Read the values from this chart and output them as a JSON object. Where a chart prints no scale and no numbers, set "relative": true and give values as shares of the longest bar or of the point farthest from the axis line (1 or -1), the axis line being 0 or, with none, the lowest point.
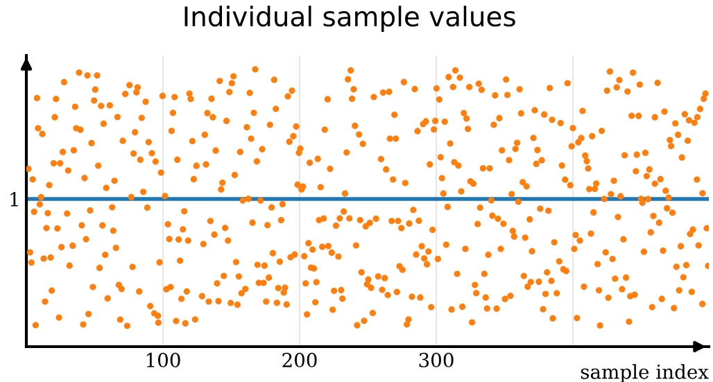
{
  "chart_data": {
    "type": "scatter",
    "title": "Individual sample values",
    "xlabel": "sample index",
    "relative": true,
    "xlim": [
      0,
      499.5
    ],
    "xticks": [
      100,
      200,
      300,
      {
        "value": 400,
        "label": null
      }
    ],
    "grid": "x",
    "marker": "circle",
    "ref_lines": [
      {
        "axis": "y",
        "value": 0.5325,
        "label": "1",
        "color": "#1f77b4"
      }
    ],
    "series": [
      {
        "color": "#ff7f0e",
        "x": [
          38.6,
          44.7,
          51.8,
          27.6,
          7.8,
          21.7,
          50.4,
          75.5,
          81.4,
          80.6,
          72.4,
          99.7,
          108.5,
          119.4,
          120.3,
          35.7,
          49.6,
          54.7,
          61.1,
          87.3,
          20.8,
          66.7,
          84.4,
          107.3,
          8.6,
          11.7,
          36.5,
          39.6,
          56.5,
          79.5,
          106.3,
          47.7,
          70.6,
          89.5,
          121.5,
          26.7,
          34.7,
          78.5,
          91.9,
          20,
          24.7,
          52.6,
          83.4,
          94.6,
          110.5,
          1.5,
          4.7,
          16.8,
          30.6,
          42.6,
          58.5,
          64.5,
          98.6,
          122.5,
          124.5,
          85.6,
          10.8,
          76.8,
          101.5,
          9.8,
          5.7,
          15.7,
          29.8,
          46.7,
          62.8,
          88.5,
          115.6,
          14.7,
          22.7,
          40.6,
          55.7,
          63.6,
          103.6,
          114.6,
          43.7,
          104.6,
          111.5,
          118.4,
          2.7,
          3.7,
          12.7,
          17.8,
          25.7,
          33.9,
          31.6,
          53.6,
          57.7,
          65.6,
          77.7,
          97.5,
          112.5,
          18.6,
          13.7,
          48.7,
          59.5,
          67.7,
          69.7,
          82.6,
          102.5,
          105.6,
          117.4,
          113.5,
          90.7,
          93.6,
          96.3,
          96.6,
          23.9,
          45.5,
          6.8,
          41.6,
          68.7,
          73.8,
          109.6,
          116.4,
          123.5,
          167.5,
          141.5,
          151.6,
          150.4,
          148.6,
          163.5,
          181.4,
          194.4,
          191.4,
          135.5,
          132.5,
          136.5,
          146.5,
          166.5,
          182.6,
          161.4,
          178.3,
          197.5,
          130.6,
          164.5,
          195.4,
          192.5,
          138.6,
          156.5,
          172.6,
          200.5,
          199.5,
          168.7,
          131.5,
          152.5,
          143.5,
          142.5,
          198.5,
          202.4,
          201.4,
          218.4,
          220.5,
          237.4,
          235.4,
          239.6,
          238.4,
          254.3,
          240.5,
          243.5,
          246.3,
          234.4,
          207.4,
          213.3,
          222.3,
          215.4,
          233.2,
          158.4,
          162.6,
          171.4,
          179.5,
          187.5,
          134.7,
          145.5,
          137.6,
          147.6,
          129.6,
          165.5,
          176.5,
          186.5,
          232.3,
          214.2,
          217.6,
          229.4,
          226.6,
          236.4,
          244.3,
          248.4,
          251.4,
          255.9,
          180.4,
          185.5,
          153.5,
          169.2,
          174.3,
          193.4,
          196.4,
          206.5,
          209.5,
          216.6,
          221,
          223.5,
          228.4,
          203.4,
          241.3,
          208.3,
          210.5,
          245.3,
          250.3,
          249.4,
          252.3,
          144.5,
          139.6,
          155.5,
          170.2,
          173.6,
          177.5,
          128.6,
          133.5,
          140.6,
          149.6,
          154.5,
          157.5,
          160.3,
          175.5,
          183.4,
          190.5,
          184.4,
          189.3,
          188.4,
          204.4,
          212.3,
          225.2,
          230.4,
          231.3,
          211.5,
          205.4,
          224.2,
          242.1,
          247.2,
          253.5,
          276.3,
          284.3,
          261.1,
          265.5,
          300.2,
          302.2,
          309.1,
          314,
          317.3,
          312.3,
          324.2,
          331.1,
          333.2,
          343.1,
          351.1,
          352.1,
          361,
          383.1,
          269.4,
          286.3,
          290.4,
          292.4,
          299.3,
          298.3,
          306.2,
          320.2,
          322.2,
          323.2,
          342.1,
          346.2,
          362.1,
          372.1,
          379,
          384.8,
          266.1,
          270.4,
          310.2,
          348.1,
          359.2,
          358,
          371.1,
          374.1,
          259.6,
          263.3,
          268.4,
          277.3,
          295.3,
          303.2,
          313.2,
          316.2,
          334.2,
          339.1,
          353.3,
          373.2,
          377.2,
          304.2,
          305.2,
          318.3,
          325,
          327.2,
          363.3,
          366.1,
          355.2,
          340.3,
          360.1,
          283.2,
          308.3,
          332.1,
          376.1,
          382.1,
          267.4,
          272.1,
          274.5,
          280.2,
          287.3,
          297.3,
          330.3,
          341.1,
          345.2,
          349.2,
          356,
          357,
          365.1,
          368.4,
          289.4,
          285.3,
          294.3,
          291.2,
          293.2,
          301.2,
          307.3,
          321.3,
          338.1,
          347.2,
          370.1,
          273.1,
          275.3,
          257.5,
          262.3,
          260.4,
          264.5,
          271.2,
          282.2,
          288.3,
          296.3,
          279.7,
          278.5,
          315.3,
          335.2,
          328.3,
          329.3,
          336.2,
          311.2,
          319.1,
          337.2,
          344.2,
          326.2,
          350.3,
          354.3,
          364.1,
          369.2,
          366.9,
          375.1,
          381.1,
          384.3,
          380,
          378.2,
          385.3,
          386.4,
          427.1,
          444,
          434,
          432.1,
          425,
          440,
          448.9,
          462,
          396.1,
          407.1,
          443,
          448.1,
          460,
          467,
          475,
          481.9,
          485,
          489,
          491.1,
          493.1,
          495.8,
          497,
          391,
          400,
          406.1,
          404,
          399.1,
          414.1,
          421.1,
          477,
          471,
          471.9,
          484.1,
          479.8,
          437.9,
          446.8,
          453,
          409,
          410.2,
          411.2,
          392,
          394.3,
          398.1,
          412,
          416.1,
          417.1,
          430,
          427.9,
          423,
          434.9,
          446.1,
          456,
          454,
          460,
          464.1,
          467.9,
          470.1,
          449.9,
          455,
          450.9,
          490.8,
          494.9,
          468.9,
          472.9,
          415.1,
          433,
          458.9,
          463.1,
          457,
          487.8,
          485.8,
          498,
          402,
          405.1,
          413.2,
          401,
          437,
          424,
          429,
          452,
          466,
          479,
          492,
          390,
          393,
          395.1,
          418.1,
          475.8,
          483,
          499,
          430.9,
          438.9,
          480.9,
          408.1,
          419.1,
          436,
          426,
          442,
          445.2,
          388.2,
          465.1,
          477.8,
          487,
          494.8,
          458,
          474,
          403,
          419.9,
          441.1
        ],
        "values": [
          0.988,
          0.978,
          0.978,
          0.954,
          0.896,
          0.893,
          0.927,
          0.943,
          0.935,
          0.917,
          0.911,
          0.904,
          0.9,
          0.9125,
          0.893,
          0.865,
          0.8875,
          0.868,
          0.87,
          0.883,
          0.827,
          0.828,
          0.825,
          0.843,
          0.7875,
          0.767,
          0.7875,
          0.782,
          0.804,
          0.773,
          0.778,
          0.734,
          0.742,
          0.7375,
          0.741,
          0.702,
          0.708,
          0.696,
          0.6975,
          0.661,
          0.661,
          0.6525,
          0.674,
          0.6675,
          0.674,
          0.641,
          0.603,
          0.5825,
          0.635,
          0.608,
          0.5725,
          0.598,
          0.6275,
          0.604,
          0.652,
          0.558,
          0.539,
          0.539,
          0.543,
          0.513,
          0.486,
          0.481,
          0.48,
          0.491,
          0.5025,
          0.501,
          0.488,
          0.4275,
          0.426,
          0.4375,
          0.437,
          0.418,
          0.441,
          0.423,
          0.3875,
          0.388,
          0.386,
          0.3825,
          0.34,
          0.303,
          0.3175,
          0.321,
          0.359,
          0.364,
          0.292,
          0.284,
          0.331,
          0.356,
          0.2875,
          0.304,
          0.31,
          0.202,
          0.1625,
          0.215,
          0.174,
          0.2225,
          0.208,
          0.199,
          0.207,
          0.215,
          0.199,
          0.1725,
          0.146,
          0.12,
          0.111,
          0.086,
          0.105,
          0.1175,
          0.0775,
          0.08,
          0.0975,
          0.075,
          0.0925,
          0.084,
          0.098,
          1.0,
          0.958,
          0.975,
          0.95,
          0.918,
          0.915,
          0.962,
          0.923,
          0.9025,
          0.894,
          0.842,
          0.827,
          0.814,
          0.843,
          0.8575,
          0.791,
          0.8,
          0.794,
          0.764,
          0.75,
          0.759,
          0.739,
          0.707,
          0.702,
          0.712,
          0.714,
          0.699,
          0.668,
          0.657,
          0.619,
          0.591,
          0.567,
          0.584,
          0.5775,
          0.567,
          0.7825,
          0.892,
          0.996,
          0.964,
          0.928,
          0.894,
          0.9,
          0.796,
          0.765,
          0.731,
          0.7,
          0.663,
          0.677,
          0.641,
          0.575,
          0.552,
          0.527,
          0.533,
          0.527,
          0.502,
          0.514,
          0.453,
          0.428,
          0.404,
          0.3825,
          0.37,
          0.447,
          0.438,
          0.456,
          0.487,
          0.456,
          0.462,
          0.4625,
          0.436,
          0.4625,
          0.456,
          0.434,
          0.446,
          0.461,
          0.337,
          0.306,
          0.305,
          0.295,
          0.292,
          0.3225,
          0.332,
          0.373,
          0.35,
          0.36,
          0.3625,
          0.339,
          0.325,
          0.326,
          0.365,
          0.285,
          0.282,
          0.268,
          0.242,
          0.225,
          0.212,
          0.255,
          0.228,
          0.253,
          0.23,
          0.23,
          0.249,
          0.182,
          0.1625,
          0.164,
          0.1575,
          0.151,
          0.1925,
          0.208,
          0.1625,
          0.158,
          0.152,
          0.211,
          0.2125,
          0.195,
          0.228,
          0.2325,
          0.201,
          0.204,
          0.173,
          0.16,
          0.116,
          0.133,
          0.077,
          0.093,
          0.121,
          0.954,
          0.929,
          0.916,
          0.919,
          0.931,
          0.891,
          0.972,
          0.996,
          0.97,
          0.936,
          0.936,
          0.948,
          0.926,
          0.906,
          0.963,
          0.9075,
          0.928,
          0.9325,
          0.836,
          0.777,
          0.8025,
          0.812,
          0.814,
          0.783,
          0.811,
          0.842,
          0.8225,
          0.785,
          0.8,
          0.824,
          0.841,
          0.8525,
          0.837,
          0.818,
          0.75,
          0.75,
          0.7325,
          0.708,
          0.735,
          0.713,
          0.7525,
          0.709,
          0.676,
          0.639,
          0.6025,
          0.59,
          0.657,
          0.683,
          0.665,
          0.653,
          0.643,
          0.643,
          0.6725,
          0.659,
          0.672,
          0.6075,
          0.552,
          0.56,
          0.596,
          0.5875,
          0.593,
          0.578,
          0.55,
          0.5275,
          0.5225,
          0.493,
          0.504,
          0.501,
          0.4975,
          0.49,
          0.453,
          0.453,
          0.4275,
          0.444,
          0.454,
          0.421,
          0.442,
          0.472,
          0.461,
          0.443,
          0.417,
          0.397,
          0.393,
          0.459,
          0.362,
          0.332,
          0.343,
          0.318,
          0.297,
          0.316,
          0.3675,
          0.3525,
          0.331,
          0.3525,
          0.344,
          0.29,
          0.277,
          0.253,
          0.247,
          0.205,
          0.186,
          0.197,
          0.18,
          0.177,
          0.1425,
          0.098,
          0.08,
          0.2625,
          0.2625,
          0.2225,
          0.193,
          0.177,
          0.134,
          0.144,
          0.1375,
          0.137,
          0.0875,
          0.172,
          0.183,
          0.255,
          0.233,
          0.216,
          0.234,
          0.268,
          0.237,
          0.19,
          0.135,
          0.102,
          0.376,
          0.992,
          0.988,
          0.961,
          0.935,
          0.923,
          0.92,
          0.945,
          0.951,
          0.95,
          0.85,
          0.8325,
          0.832,
          0.827,
          0.8475,
          0.805,
          0.838,
          0.816,
          0.8075,
          0.8275,
          0.857,
          0.894,
          0.9125,
          0.806,
          0.788,
          0.752,
          0.737,
          0.7225,
          0.759,
          0.778,
          0.764,
          0.745,
          0.723,
          0.7425,
          0.682,
          0.69,
          0.692,
          0.699,
          0.689,
          0.669,
          0.6425,
          0.653,
          0.602,
          0.582,
          0.568,
          0.569,
          0.588,
          0.598,
          0.55,
          0.5325,
          0.542,
          0.6325,
          0.639,
          0.615,
          0.5875,
          0.604,
          0.562,
          0.537,
          0.533,
          0.532,
          0.519,
          0.6025,
          0.553,
          0.499,
          0.483,
          0.484,
          0.4675,
          0.471,
          0.447,
          0.412,
          0.422,
          0.406,
          0.427,
          0.4025,
          0.3825,
          0.4075,
          0.3525,
          0.387,
          0.34,
          0.316,
          0.342,
          0.346,
          0.362,
          0.365,
          0.3075,
          0.279,
          0.2725,
          0.2975,
          0.288,
          0.294,
          0.291,
          0.245,
          0.249,
          0.25,
          0.216,
          0.203,
          0.207,
          0.176,
          0.182,
          0.187,
          0.1925,
          0.172,
          0.203,
          0.1975,
          0.154,
          0.1425,
          0.139,
          0.103,
          0.076,
          0.09
        ]
      }
    ]
  }
}
